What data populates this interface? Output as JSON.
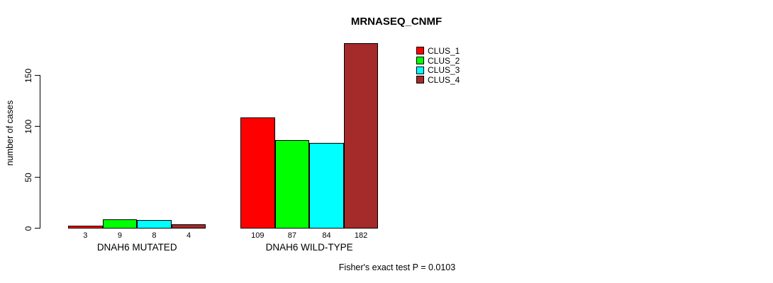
{
  "chart": {
    "title": "MRNASEQ_CNMF",
    "ylabel": "number of cases",
    "footer": "Fisher's exact test P = 0.0103",
    "chart_data": {
      "type": "bar",
      "title": "MRNASEQ_CNMF",
      "xlabel": "",
      "ylabel": "number of cases",
      "annotation": "Fisher's exact test P = 0.0103",
      "categories": [
        "DNAH6 MUTATED",
        "DNAH6 WILD-TYPE"
      ],
      "series": [
        {
          "name": "CLUS_1",
          "color": "#ff0000",
          "values": [
            3,
            109
          ]
        },
        {
          "name": "CLUS_2",
          "color": "#00ff00",
          "values": [
            9,
            87
          ]
        },
        {
          "name": "CLUS_3",
          "color": "#00ffff",
          "values": [
            8,
            84
          ]
        },
        {
          "name": "CLUS_4",
          "color": "#a52a2a",
          "values": [
            4,
            182
          ]
        }
      ],
      "groups": [
        {
          "label": "DNAH6 MUTATED",
          "values": [
            3,
            9,
            8,
            4
          ]
        },
        {
          "label": "DNAH6 WILD-TYPE",
          "values": [
            109,
            87,
            84,
            182
          ]
        }
      ],
      "bar_value_labels": [
        [
          3,
          9,
          8,
          4
        ],
        [
          109,
          87,
          84,
          182
        ]
      ],
      "y_ticks": [
        0,
        50,
        100,
        150
      ],
      "ylim": [
        0,
        182
      ],
      "grid": false,
      "legend_position": "top-right",
      "legend": [
        {
          "label": "CLUS_1",
          "color": "#ff0000"
        },
        {
          "label": "CLUS_2",
          "color": "#00ff00"
        },
        {
          "label": "CLUS_3",
          "color": "#00ffff"
        },
        {
          "label": "CLUS_4",
          "color": "#a52a2a"
        }
      ],
      "colors": {
        "bar_border": "#000000",
        "axis": "#000000",
        "text": "#000000",
        "background": "#ffffff"
      }
    }
  }
}
